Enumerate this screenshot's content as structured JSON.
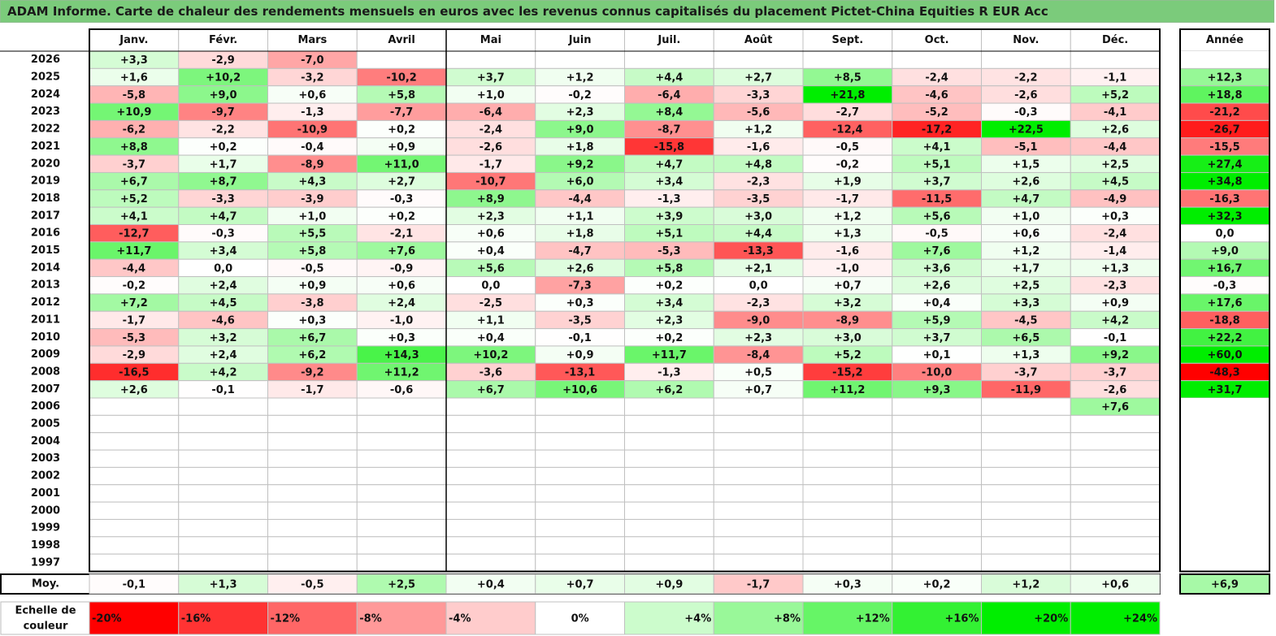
{
  "title": "ADAM Informe. Carte de chaleur des rendements mensuels en euros avec les revenus connus capitalisés du placement Pictet-China Equities R EUR Acc",
  "chart_data": {
    "type": "heatmap",
    "months": [
      "Janv.",
      "Févr.",
      "Mars",
      "Avril",
      "Mai",
      "Juin",
      "Juil.",
      "Août",
      "Sept.",
      "Oct.",
      "Nov.",
      "Déc."
    ],
    "year_header": "Année",
    "rows": [
      {
        "year": "2026",
        "values": [
          3.3,
          -2.9,
          -7.0,
          null,
          null,
          null,
          null,
          null,
          null,
          null,
          null,
          null
        ],
        "annual": null
      },
      {
        "year": "2025",
        "values": [
          1.6,
          10.2,
          -3.2,
          -10.2,
          3.7,
          1.2,
          4.4,
          2.7,
          8.5,
          -2.4,
          -2.2,
          -1.1
        ],
        "annual": 12.3
      },
      {
        "year": "2024",
        "values": [
          -5.8,
          9.0,
          0.6,
          5.8,
          1.0,
          -0.2,
          -6.4,
          -3.3,
          21.8,
          -4.6,
          -2.6,
          5.2
        ],
        "annual": 18.8
      },
      {
        "year": "2023",
        "values": [
          10.9,
          -9.7,
          -1.3,
          -7.7,
          -6.4,
          2.3,
          8.4,
          -5.6,
          -2.7,
          -5.2,
          -0.3,
          -4.1
        ],
        "annual": -21.2
      },
      {
        "year": "2022",
        "values": [
          -6.2,
          -2.2,
          -10.9,
          0.2,
          -2.4,
          9.0,
          -8.7,
          1.2,
          -12.4,
          -17.2,
          22.5,
          2.6
        ],
        "annual": -26.7
      },
      {
        "year": "2021",
        "values": [
          8.8,
          0.2,
          -0.4,
          0.9,
          -2.6,
          1.8,
          -15.8,
          -1.6,
          -0.5,
          4.1,
          -5.1,
          -4.4
        ],
        "annual": -15.5
      },
      {
        "year": "2020",
        "values": [
          -3.7,
          1.7,
          -8.9,
          11.0,
          -1.7,
          9.2,
          4.7,
          4.8,
          -0.2,
          5.1,
          1.5,
          2.5
        ],
        "annual": 27.4
      },
      {
        "year": "2019",
        "values": [
          6.7,
          8.7,
          4.3,
          2.7,
          -10.7,
          6.0,
          3.4,
          -2.3,
          1.9,
          3.7,
          2.6,
          4.5
        ],
        "annual": 34.8
      },
      {
        "year": "2018",
        "values": [
          5.2,
          -3.3,
          -3.9,
          -0.3,
          8.9,
          -4.4,
          -1.3,
          -3.5,
          -1.7,
          -11.5,
          4.7,
          -4.9
        ],
        "annual": -16.3
      },
      {
        "year": "2017",
        "values": [
          4.1,
          4.7,
          1.0,
          0.2,
          2.3,
          1.1,
          3.9,
          3.0,
          1.2,
          5.6,
          1.0,
          0.3
        ],
        "annual": 32.3
      },
      {
        "year": "2016",
        "values": [
          -12.7,
          -0.3,
          5.5,
          -2.1,
          0.6,
          1.8,
          5.1,
          4.4,
          1.3,
          -0.5,
          0.6,
          -2.4
        ],
        "annual": 0.0
      },
      {
        "year": "2015",
        "values": [
          11.7,
          3.4,
          5.8,
          7.6,
          0.4,
          -4.7,
          -5.3,
          -13.3,
          -1.6,
          7.6,
          1.2,
          -1.4
        ],
        "annual": 9.0
      },
      {
        "year": "2014",
        "values": [
          -4.4,
          0.0,
          -0.5,
          -0.9,
          5.6,
          2.6,
          5.8,
          2.1,
          -1.0,
          3.6,
          1.7,
          1.3
        ],
        "annual": 16.7
      },
      {
        "year": "2013",
        "values": [
          -0.2,
          2.4,
          0.9,
          0.6,
          -0.0,
          -7.3,
          0.2,
          0.0,
          0.7,
          2.6,
          2.5,
          -2.3
        ],
        "annual": -0.3
      },
      {
        "year": "2012",
        "values": [
          7.2,
          4.5,
          -3.8,
          2.4,
          -2.5,
          0.3,
          3.4,
          -2.3,
          3.2,
          0.4,
          3.3,
          0.9
        ],
        "annual": 17.6
      },
      {
        "year": "2011",
        "values": [
          -1.7,
          -4.6,
          0.3,
          -1.0,
          1.1,
          -3.5,
          2.3,
          -9.0,
          -8.9,
          5.9,
          -4.5,
          4.2
        ],
        "annual": -18.8
      },
      {
        "year": "2010",
        "values": [
          -5.3,
          3.2,
          6.7,
          0.3,
          0.4,
          -0.1,
          0.2,
          2.3,
          3.0,
          3.7,
          6.5,
          -0.1
        ],
        "annual": 22.2
      },
      {
        "year": "2009",
        "values": [
          -2.9,
          2.4,
          6.2,
          14.3,
          10.2,
          0.9,
          11.7,
          -8.4,
          5.2,
          0.1,
          1.3,
          9.2
        ],
        "annual": 60.0
      },
      {
        "year": "2008",
        "values": [
          -16.5,
          4.2,
          -9.2,
          11.2,
          -3.6,
          -13.1,
          -1.3,
          0.5,
          -15.2,
          -10.0,
          -3.7,
          -3.7
        ],
        "annual": -48.3
      },
      {
        "year": "2007",
        "values": [
          2.6,
          -0.1,
          -1.7,
          -0.6,
          6.7,
          10.6,
          6.2,
          0.7,
          11.2,
          9.3,
          -11.9,
          -2.6
        ],
        "annual": 31.7
      },
      {
        "year": "2006",
        "values": [
          null,
          null,
          null,
          null,
          null,
          null,
          null,
          null,
          null,
          null,
          null,
          7.6
        ],
        "annual": null
      },
      {
        "year": "2005",
        "values": [
          null,
          null,
          null,
          null,
          null,
          null,
          null,
          null,
          null,
          null,
          null,
          null
        ],
        "annual": null
      },
      {
        "year": "2004",
        "values": [
          null,
          null,
          null,
          null,
          null,
          null,
          null,
          null,
          null,
          null,
          null,
          null
        ],
        "annual": null
      },
      {
        "year": "2003",
        "values": [
          null,
          null,
          null,
          null,
          null,
          null,
          null,
          null,
          null,
          null,
          null,
          null
        ],
        "annual": null
      },
      {
        "year": "2002",
        "values": [
          null,
          null,
          null,
          null,
          null,
          null,
          null,
          null,
          null,
          null,
          null,
          null
        ],
        "annual": null
      },
      {
        "year": "2001",
        "values": [
          null,
          null,
          null,
          null,
          null,
          null,
          null,
          null,
          null,
          null,
          null,
          null
        ],
        "annual": null
      },
      {
        "year": "2000",
        "values": [
          null,
          null,
          null,
          null,
          null,
          null,
          null,
          null,
          null,
          null,
          null,
          null
        ],
        "annual": null
      },
      {
        "year": "1999",
        "values": [
          null,
          null,
          null,
          null,
          null,
          null,
          null,
          null,
          null,
          null,
          null,
          null
        ],
        "annual": null
      },
      {
        "year": "1998",
        "values": [
          null,
          null,
          null,
          null,
          null,
          null,
          null,
          null,
          null,
          null,
          null,
          null
        ],
        "annual": null
      },
      {
        "year": "1997",
        "values": [
          null,
          null,
          null,
          null,
          null,
          null,
          null,
          null,
          null,
          null,
          null,
          null
        ],
        "annual": null
      }
    ],
    "average": {
      "label": "Moy.",
      "values": [
        -0.1,
        1.3,
        -0.5,
        2.5,
        0.4,
        0.7,
        0.9,
        -1.7,
        0.3,
        0.2,
        1.2,
        0.6
      ],
      "annual": 6.9
    },
    "scale": {
      "label_line1": "Echelle de",
      "label_line2": "couleur",
      "steps": [
        -20,
        -16,
        -12,
        -8,
        -4,
        0,
        4,
        8,
        12,
        16,
        20,
        24
      ],
      "step_labels": [
        "-20%",
        "-16%",
        "-12%",
        "-8%",
        "-4%",
        "0%",
        "+4%",
        "+8%",
        "+12%",
        "+16%",
        "+20%",
        "+24%"
      ]
    },
    "colors": {
      "negative_max": "#ff0000",
      "positive_max": "#00ee00",
      "neutral": "#ffffff",
      "grid": "#c0c0c0",
      "border": "#000000",
      "title_bg": "#7bcb7b"
    }
  }
}
